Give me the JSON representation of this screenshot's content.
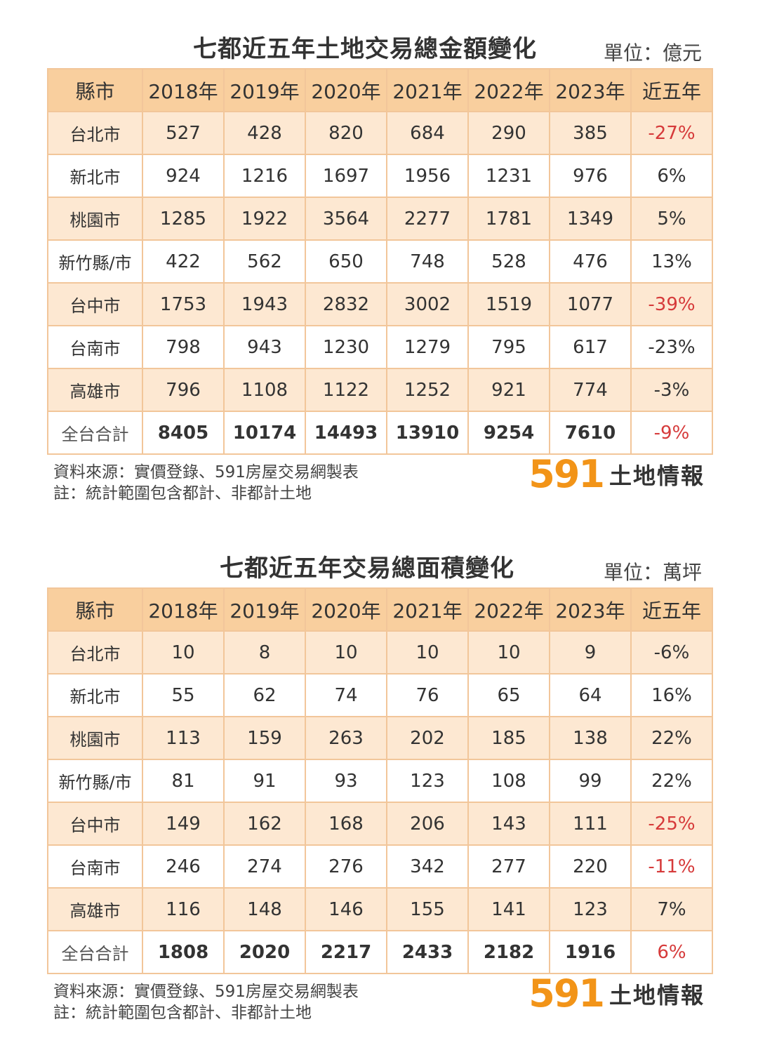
{
  "table1": {
    "title": "七都近五年土地交易總金額變化",
    "unit": "單位：億元",
    "headers": [
      "縣市",
      "2018年",
      "2019年",
      "2020年",
      "2021年",
      "2022年",
      "2023年",
      "近五年"
    ],
    "rows": [
      [
        "台北市",
        "527",
        "428",
        "820",
        "684",
        "290",
        "385",
        "-27%"
      ],
      [
        "新北市",
        "924",
        "1216",
        "1697",
        "1956",
        "1231",
        "976",
        "6%"
      ],
      [
        "桃園市",
        "1285",
        "1922",
        "3564",
        "2277",
        "1781",
        "1349",
        "5%"
      ],
      [
        "新竹縣/市",
        "422",
        "562",
        "650",
        "748",
        "528",
        "476",
        "13%"
      ],
      [
        "台中市",
        "1753",
        "1943",
        "2832",
        "3002",
        "1519",
        "1077",
        "-39%"
      ],
      [
        "台南市",
        "798",
        "943",
        "1230",
        "1279",
        "795",
        "617",
        "-23%"
      ],
      [
        "高雄市",
        "796",
        "1108",
        "1122",
        "1252",
        "921",
        "774",
        "-3%"
      ]
    ],
    "total": [
      "全台合計",
      "8405",
      "10174",
      "14493",
      "13910",
      "9254",
      "7610",
      "-9%"
    ],
    "red_change_rows": [
      0,
      4
    ],
    "total_change_red": true,
    "source": "資料來源：實價登錄、591房屋交易網製表",
    "note": "註：統計範圍包含都計、非都計土地"
  },
  "table2": {
    "title": "七都近五年交易總面積變化",
    "unit": "單位：萬坪",
    "headers": [
      "縣市",
      "2018年",
      "2019年",
      "2020年",
      "2021年",
      "2022年",
      "2023年",
      "近五年"
    ],
    "rows": [
      [
        "台北市",
        "10",
        "8",
        "10",
        "10",
        "10",
        "9",
        "-6%"
      ],
      [
        "新北市",
        "55",
        "62",
        "74",
        "76",
        "65",
        "64",
        "16%"
      ],
      [
        "桃園市",
        "113",
        "159",
        "263",
        "202",
        "185",
        "138",
        "22%"
      ],
      [
        "新竹縣/市",
        "81",
        "91",
        "93",
        "123",
        "108",
        "99",
        "22%"
      ],
      [
        "台中市",
        "149",
        "162",
        "168",
        "206",
        "143",
        "111",
        "-25%"
      ],
      [
        "台南市",
        "246",
        "274",
        "276",
        "342",
        "277",
        "220",
        "-11%"
      ],
      [
        "高雄市",
        "116",
        "148",
        "146",
        "155",
        "141",
        "123",
        "7%"
      ]
    ],
    "total": [
      "全台合計",
      "1808",
      "2020",
      "2217",
      "2433",
      "2182",
      "1916",
      "6%"
    ],
    "red_change_rows": [
      4,
      5
    ],
    "total_change_red": true,
    "source": "資料來源：實價登錄、591房屋交易網製表",
    "note": "註：統計範圍包含都計、非都計土地"
  },
  "brand": {
    "number": "591",
    "text": "土地情報"
  },
  "colors": {
    "header": "#f9cf9e",
    "odd_row": "#fde8d2",
    "border": "#f2c69a",
    "negative": "#d63a3a",
    "brand": "#f29418"
  }
}
